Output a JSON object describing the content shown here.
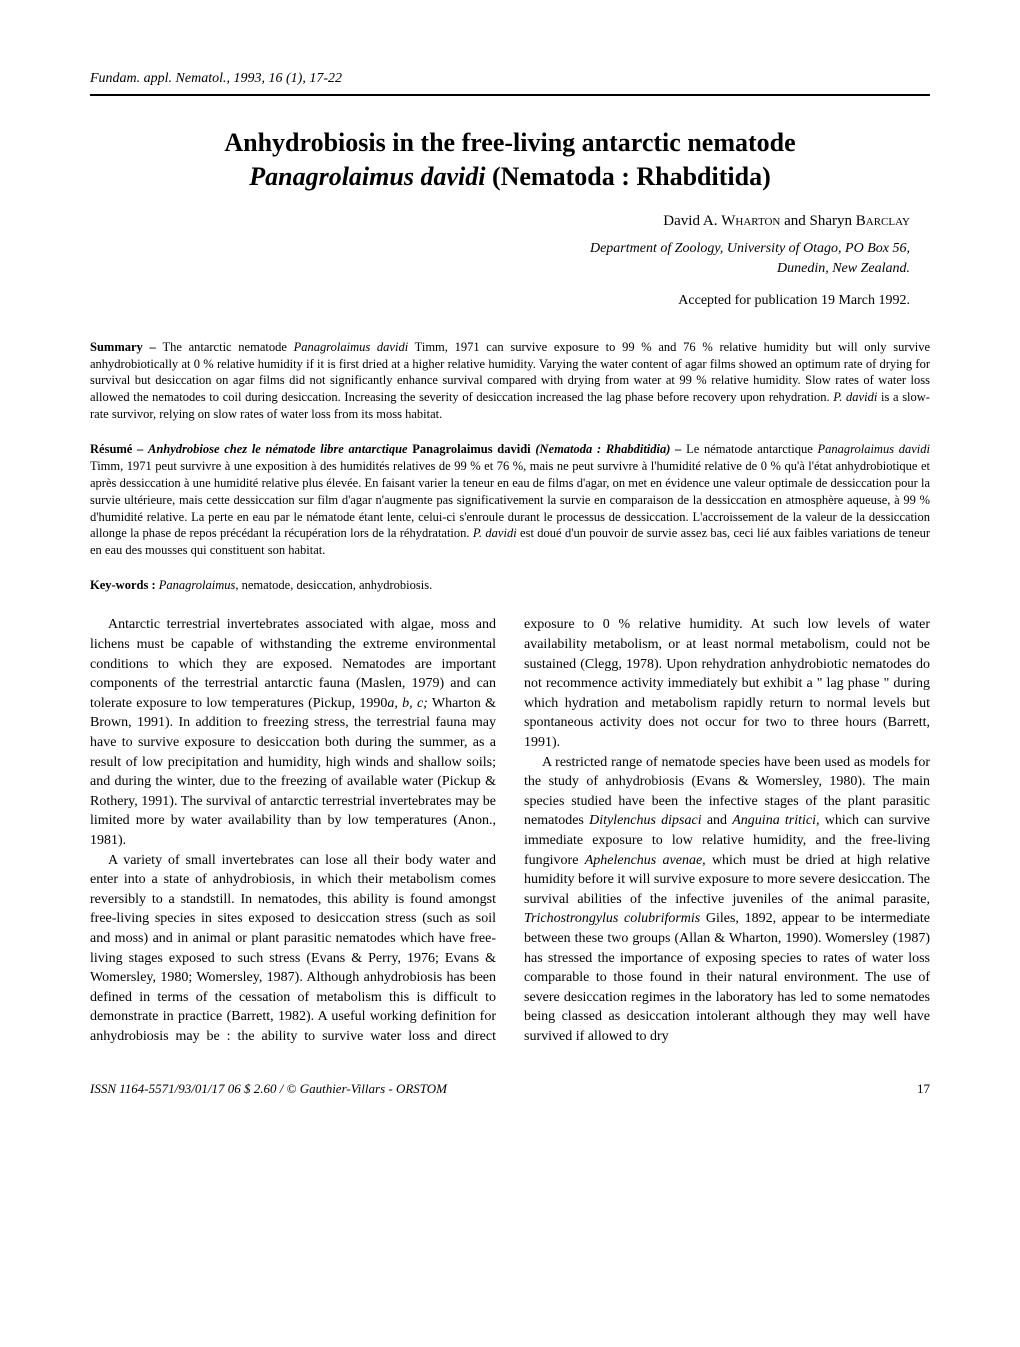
{
  "journal_header": "Fundam. appl. Nematol., 1993, 16 (1), 17-22",
  "title_line1": "Anhydrobiosis in the free-living antarctic nematode",
  "title_line2_italic": "Panagrolaimus davidi",
  "title_line2_rest": " (Nematoda : Rhabditida)",
  "author_first": "David A. ",
  "author_surname1": "Wharton",
  "author_and": " and Sharyn ",
  "author_surname2": "Barclay",
  "affiliation_line1": "Department of Zoology, University of Otago, PO Box 56,",
  "affiliation_line2": "Dunedin, New Zealand.",
  "accepted": "Accepted for publication 19 March 1992.",
  "summary_label": "Summary – ",
  "summary_text1": "The antarctic nematode ",
  "summary_italic1": "Panagrolaimus davidi",
  "summary_text2": " Timm, 1971 can survive exposure to 99 % and 76 % relative humidity but will only survive anhydrobiotically at 0 % relative humidity if it is first dried at a higher relative humidity. Varying the water content of agar films showed an optimum rate of drying for survival but desiccation on agar films did not significantly enhance survival compared with drying from water at 99 % relative humidity. Slow rates of water loss allowed the nematodes to coil during desiccation. Increasing the severity of desiccation increased the lag phase before recovery upon rehydration. ",
  "summary_italic2": "P. davidi",
  "summary_text3": " is a slow-rate survivor, relying on slow rates of water loss from its moss habitat.",
  "resume_label": "Résumé – ",
  "resume_bolditalic": "Anhydrobiose chez le nématode libre antarctique ",
  "resume_bold1": "Panagrolaimus davidi ",
  "resume_bolditalic2": "(Nematoda : Rhabditidia) – ",
  "resume_text1": "Le nématode antarctique ",
  "resume_italic1": "Panagrolaimus davidi",
  "resume_text2": " Timm, 1971 peut survivre à une exposition à des humidités relatives de 99 % et 76 %, mais ne peut survivre à l'humidité relative de 0 % qu'à l'état anhydrobiotique et après dessiccation à une humidité relative plus élevée. En faisant varier la teneur en eau de films d'agar, on met en évidence une valeur optimale de dessiccation pour la survie ultérieure, mais cette dessiccation sur film d'agar n'augmente pas significativement la survie en comparaison de la dessiccation en atmosphère aqueuse, à 99 % d'humidité relative. La perte en eau par le nématode étant lente, celui-ci s'enroule durant le processus de dessiccation. L'accroissement de la valeur de la dessiccation allonge la phase de repos précédant la récupération lors de la réhydratation. ",
  "resume_italic2": "P. davidi",
  "resume_text3": " est doué d'un pouvoir de survie assez bas, ceci lié aux faibles variations de teneur en eau des mousses qui constituent son habitat.",
  "keywords_label": "Key-words : ",
  "keywords_italic": "Panagrolaimus,",
  "keywords_text": " nematode, desiccation, anhydrobiosis.",
  "body_p1_a": "Antarctic terrestrial invertebrates associated with algae, moss and lichens must be capable of withstanding the extreme environmental conditions to which they are exposed. Nematodes are important components of the terrestrial antarctic fauna (Maslen, 1979) and can tolerate exposure to low temperatures (Pickup, 1990",
  "body_p1_i1": "a, b, c;",
  "body_p1_b": " Wharton & Brown, 1991). In addition to freezing stress, the terrestrial fauna may have to survive exposure to desiccation both during the summer, as a result of low precipitation and humidity, high winds and shallow soils; and during the winter, due to the freezing of available water (Pickup & Rothery, 1991). The survival of antarctic terrestrial invertebrates may be limited more by water availability than by low temperatures (Anon., 1981).",
  "body_p2": "A variety of small invertebrates can lose all their body water and enter into a state of anhydrobiosis, in which their metabolism comes reversibly to a standstill. In nematodes, this ability is found amongst free-living species in sites exposed to desiccation stress (such as soil and moss) and in animal or plant parasitic nematodes which have free-living stages exposed to such stress (Evans & Perry, 1976; Evans & Womersley, 1980; Womersley, 1987). Although anhydrobiosis has been defined in terms of the cessation of metabolism this is difficult to demonstrate in practice (Barrett, 1982). A useful work­ing definition for anhydrobiosis may be : the ability to survive water loss and direct exposure to 0 % relative humidity. At such low levels of water availability metabolism, or at least normal metabolism, could not be sustained (Clegg, 1978). Upon rehydration anhydrobiotic nematodes do not recommence activity immediately but exhibit a \" lag phase \" during which hydration and metabolism rapidly return to normal levels but spontaneous activity does not occur for two to three hours (Barrett, 1991).",
  "body_p3_a": "A restricted range of nematode species have been used as models for the study of anhydrobiosis (Evans & Womersley, 1980). The main species studied have been the infective stages of the plant parasitic nematodes ",
  "body_p3_i1": "Ditylenchus dipsaci",
  "body_p3_b": " and ",
  "body_p3_i2": "Anguina tritici,",
  "body_p3_c": " which can survive immediate exposure to low relative humidity, and the free-living fungivore ",
  "body_p3_i3": "Aphelenchus avenae,",
  "body_p3_d": " which must be dried at high relative humidity before it will survive exposure to more severe desiccation. The survival abilities of the infective juveniles of the animal parasite, ",
  "body_p3_i4": "Trichostrongylus colubriformis",
  "body_p3_e": " Giles, 1892, appear to be intermediate between these two groups (Allan & Wharton, 1990). Womersley (1987) has stressed the importance of exposing species to rates of water loss comparable to those found in their natural environment. The use of severe desiccation regimes in the laboratory has led to some nematodes being classed as desiccation intolerant although they may well have survived if allowed to dry",
  "footer_issn": "ISSN 1164-5571/93/01/17 06   $ 2.60 / © Gauthier-Villars - ORSTOM",
  "footer_page": "17"
}
